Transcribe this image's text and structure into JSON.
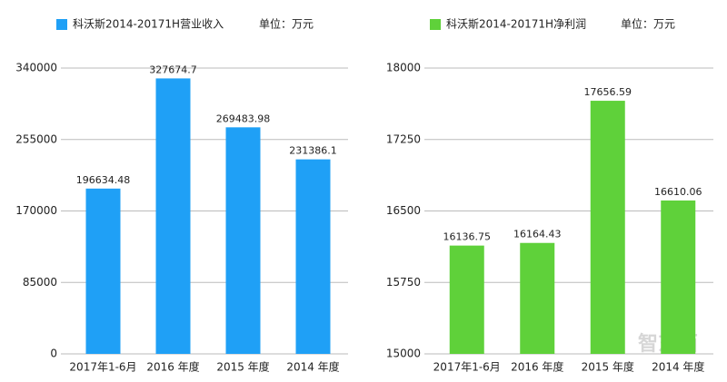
{
  "chart_data": [
    {
      "type": "bar",
      "unit_label": "单位：万元",
      "categories": [
        "2017年1-6月",
        "2016 年度",
        "2015 年度",
        "2014 年度"
      ],
      "series": [
        {
          "name": "科沃斯2014-20171H营业收入",
          "color": "#1fa0f6",
          "values": [
            196634.48,
            327674.7,
            269483.98,
            231386.1
          ]
        }
      ],
      "ylim": [
        0,
        340000
      ],
      "yticks": [
        0,
        85000,
        170000,
        255000,
        340000
      ],
      "grid": true,
      "legend": "top"
    },
    {
      "type": "bar",
      "unit_label": "单位：万元",
      "categories": [
        "2017年1-6月",
        "2016 年度",
        "2015 年度",
        "2014 年度"
      ],
      "series": [
        {
          "name": "科沃斯2014-20171H净利润",
          "color": "#5fd13a",
          "values": [
            16136.75,
            16164.43,
            17656.59,
            16610.06
          ]
        }
      ],
      "ylim": [
        15000,
        18000
      ],
      "yticks": [
        15000,
        15750,
        16500,
        17250,
        18000
      ],
      "grid": true,
      "legend": "top"
    }
  ],
  "watermark": "智东西"
}
